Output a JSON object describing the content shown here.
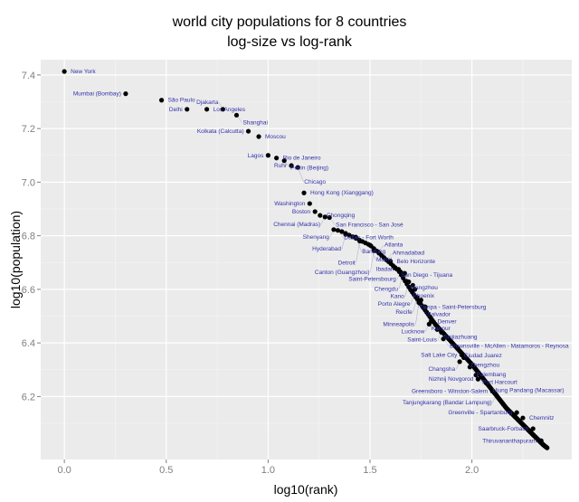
{
  "chart_data": {
    "type": "scatter",
    "title": "world city populations for 8 countries",
    "subtitle": "log-size vs log-rank",
    "xlabel": "log10(rank)",
    "ylabel": "log10(population)",
    "xlim": [
      -0.116,
      2.49
    ],
    "ylim": [
      5.965,
      7.457
    ],
    "x_ticks": [
      "0.0",
      "0.5",
      "1.0",
      "1.5",
      "2.0"
    ],
    "x_tick_values": [
      0,
      0.5,
      1,
      1.5,
      2
    ],
    "y_ticks": [
      "6.2",
      "6.4",
      "6.6",
      "6.8",
      "7.0",
      "7.2",
      "7.4"
    ],
    "y_tick_values": [
      6.2,
      6.4,
      6.6,
      6.8,
      7.0,
      7.2,
      7.4
    ],
    "grid": true,
    "panel_color": "#EBEBEB",
    "point_color": "#000000",
    "label_color": "#3333AA",
    "labeled_points": [
      {
        "label": "New York",
        "x": 0.0,
        "y": 7.413,
        "anchor": "right"
      },
      {
        "label": "Mumbai (Bombay)",
        "x": 0.301,
        "y": 7.33,
        "anchor": "left"
      },
      {
        "label": "São Paulo",
        "x": 0.477,
        "y": 7.306,
        "anchor": "right"
      },
      {
        "label": "Delhi",
        "x": 0.602,
        "y": 7.272,
        "anchor": "left"
      },
      {
        "label": "Los Angeles",
        "x": 0.699,
        "y": 7.272,
        "anchor": "left"
      },
      {
        "label": "Djakarta",
        "x": 0.778,
        "y": 7.272,
        "anchor": "left"
      },
      {
        "label": "Shanghai",
        "x": 0.845,
        "y": 7.25,
        "anchor": "right"
      },
      {
        "label": "Kolkata (Calcutta)",
        "x": 0.903,
        "y": 7.19,
        "anchor": "left"
      },
      {
        "label": "Moscou",
        "x": 0.954,
        "y": 7.17,
        "anchor": "right"
      },
      {
        "label": "Lagos",
        "x": 1.0,
        "y": 7.1,
        "anchor": "left"
      },
      {
        "label": "Rio de Janeiro",
        "x": 1.041,
        "y": 7.09,
        "anchor": "left"
      },
      {
        "label": "Pékin (Beijing)",
        "x": 1.079,
        "y": 7.08,
        "anchor": "right"
      },
      {
        "label": "Ruhr",
        "x": 1.114,
        "y": 7.062,
        "anchor": "left"
      },
      {
        "label": "Chicago",
        "x": 1.146,
        "y": 7.055,
        "anchor": "right"
      },
      {
        "label": "Hong Kong (Xianggang)",
        "x": 1.176,
        "y": 6.96,
        "anchor": "right"
      },
      {
        "label": "Washington",
        "x": 1.204,
        "y": 6.92,
        "anchor": "left"
      },
      {
        "label": "Boston",
        "x": 1.23,
        "y": 6.89,
        "anchor": "left"
      },
      {
        "label": "Chongqing",
        "x": 1.255,
        "y": 6.876,
        "anchor": "right"
      },
      {
        "label": "Chennai (Madras)",
        "x": 1.279,
        "y": 6.87,
        "anchor": "left"
      },
      {
        "label": "San Francisco - San José",
        "x": 1.301,
        "y": 6.868,
        "anchor": "right"
      },
      {
        "label": "Shenyang",
        "x": 1.322,
        "y": 6.823,
        "anchor": "left"
      },
      {
        "label": "Dallas - Fort Worth",
        "x": 1.342,
        "y": 6.82,
        "anchor": "right"
      },
      {
        "label": "Hyderabad",
        "x": 1.38,
        "y": 6.805,
        "anchor": "left"
      },
      {
        "label": "Bandung",
        "x": 1.43,
        "y": 6.795,
        "anchor": "right"
      },
      {
        "label": "Detroit",
        "x": 1.45,
        "y": 6.78,
        "anchor": "left"
      },
      {
        "label": "Miami",
        "x": 1.5,
        "y": 6.765,
        "anchor": "right"
      },
      {
        "label": "Canton (Guangzhou)",
        "x": 1.52,
        "y": 6.745,
        "anchor": "left"
      },
      {
        "label": "Atlanta",
        "x": 1.54,
        "y": 6.74,
        "anchor": "right"
      },
      {
        "label": "Ahmadabad",
        "x": 1.58,
        "y": 6.71,
        "anchor": "left"
      },
      {
        "label": "Belo Horizonte",
        "x": 1.6,
        "y": 6.705,
        "anchor": "right"
      },
      {
        "label": "San Diego - Tijuana",
        "x": 1.62,
        "y": 6.68,
        "anchor": "left"
      },
      {
        "label": "Ibadan",
        "x": 1.64,
        "y": 6.675,
        "anchor": "right"
      },
      {
        "label": "Saint-Petersbourg",
        "x": 1.65,
        "y": 6.665,
        "anchor": "left"
      },
      {
        "label": "Hangzhou",
        "x": 1.67,
        "y": 6.66,
        "anchor": "right"
      },
      {
        "label": "Chengdu",
        "x": 1.66,
        "y": 6.655,
        "anchor": "left"
      },
      {
        "label": "Phoenix",
        "x": 1.68,
        "y": 6.63,
        "anchor": "left"
      },
      {
        "label": "Kano",
        "x": 1.69,
        "y": 6.628,
        "anchor": "right"
      },
      {
        "label": "Tampa - Saint-Petersburg",
        "x": 1.71,
        "y": 6.615,
        "anchor": "right"
      },
      {
        "label": "Porto Alegre",
        "x": 1.72,
        "y": 6.6,
        "anchor": "right"
      },
      {
        "label": "Recife",
        "x": 1.73,
        "y": 6.57,
        "anchor": "left"
      },
      {
        "label": "Salvador",
        "x": 1.75,
        "y": 6.56,
        "anchor": "right"
      },
      {
        "label": "Minneapolis",
        "x": 1.74,
        "y": 6.55,
        "anchor": "left"
      },
      {
        "label": "Kanpur",
        "x": 1.77,
        "y": 6.535,
        "anchor": "right"
      },
      {
        "label": "Denver",
        "x": 1.8,
        "y": 6.48,
        "anchor": "right"
      },
      {
        "label": "Lucknow",
        "x": 1.79,
        "y": 6.47,
        "anchor": "left"
      },
      {
        "label": "Shijiazhuang",
        "x": 1.83,
        "y": 6.45,
        "anchor": "left"
      },
      {
        "label": "Saint-Louis",
        "x": 1.85,
        "y": 6.44,
        "anchor": "right"
      },
      {
        "label": "Brownsville - McAllen - Matamoros - Reynosa",
        "x": 1.86,
        "y": 6.415,
        "anchor": "left"
      },
      {
        "label": "Ciudad Juarez",
        "x": 1.93,
        "y": 6.38,
        "anchor": "right"
      },
      {
        "label": "Salt Lake City",
        "x": 1.95,
        "y": 6.355,
        "anchor": "right"
      },
      {
        "label": "Zhengzhou",
        "x": 1.96,
        "y": 6.345,
        "anchor": "right"
      },
      {
        "label": "Changsha",
        "x": 1.94,
        "y": 6.33,
        "anchor": "left"
      },
      {
        "label": "Palembang",
        "x": 1.99,
        "y": 6.31,
        "anchor": "right"
      },
      {
        "label": "Port Harcourt",
        "x": 2.02,
        "y": 6.28,
        "anchor": "right"
      },
      {
        "label": "Nizhnij Novgorod",
        "x": 2.03,
        "y": 6.265,
        "anchor": "left"
      },
      {
        "label": "Ujung Pandang (Macassar)",
        "x": 2.07,
        "y": 6.25,
        "anchor": "right"
      },
      {
        "label": "Greensboro - Winston-Salem",
        "x": 2.1,
        "y": 6.22,
        "anchor": "left"
      },
      {
        "label": "Tanjungkarang (Bandar Lampung)",
        "x": 2.12,
        "y": 6.205,
        "anchor": "left"
      },
      {
        "label": "Greenville - Spartanburg",
        "x": 2.22,
        "y": 6.14,
        "anchor": "left"
      },
      {
        "label": "Chemnitz",
        "x": 2.25,
        "y": 6.12,
        "anchor": "left"
      },
      {
        "label": "Saarbruck-Forbach",
        "x": 2.3,
        "y": 6.08,
        "anchor": "left"
      },
      {
        "label": "Thiruvananthapuram",
        "x": 2.34,
        "y": 6.035,
        "anchor": "left"
      }
    ],
    "tail_curve": [
      [
        1.35,
        6.82
      ],
      [
        1.5,
        6.765
      ],
      [
        1.64,
        6.67
      ],
      [
        1.7,
        6.597
      ],
      [
        1.82,
        6.47
      ],
      [
        2.0,
        6.32
      ],
      [
        2.17,
        6.156
      ],
      [
        2.35,
        6.02
      ],
      [
        2.37,
        6.008
      ]
    ]
  }
}
